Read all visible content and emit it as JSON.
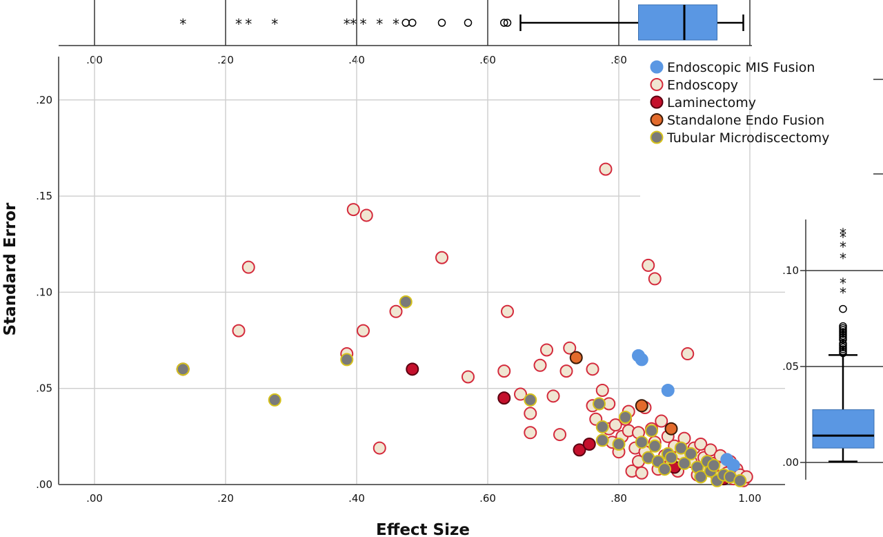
{
  "chart_data": {
    "type": "scatter",
    "title": "",
    "xlabel": "Effect Size",
    "ylabel": "Standard Error",
    "xlim": [
      -0.05,
      1.06
    ],
    "ylim": [
      0,
      0.22
    ],
    "x_ticks": [
      ".00",
      ".20",
      ".40",
      ".60",
      ".80",
      "1.00"
    ],
    "y_ticks": [
      ".00",
      ".05",
      ".10",
      ".15",
      ".20"
    ],
    "top_x_ticks": [
      ".00",
      ".20",
      ".40",
      ".60",
      ".80"
    ],
    "grid": true,
    "legend_position": "top-right",
    "series": [
      {
        "name": "Endoscopic MIS Fusion",
        "fill": "#5a97e3",
        "stroke": "#5a97e3",
        "points": [
          [
            0.83,
            0.067
          ],
          [
            0.835,
            0.065
          ],
          [
            0.875,
            0.049
          ],
          [
            0.965,
            0.013
          ],
          [
            0.975,
            0.01
          ]
        ]
      },
      {
        "name": "Endoscopy",
        "fill": "#f0e6d2",
        "stroke": "#d42a3c",
        "points": [
          [
            0.135,
            0.06
          ],
          [
            0.22,
            0.08
          ],
          [
            0.235,
            0.113
          ],
          [
            0.385,
            0.068
          ],
          [
            0.395,
            0.143
          ],
          [
            0.41,
            0.08
          ],
          [
            0.415,
            0.14
          ],
          [
            0.435,
            0.019
          ],
          [
            0.46,
            0.09
          ],
          [
            0.53,
            0.118
          ],
          [
            0.57,
            0.056
          ],
          [
            0.625,
            0.059
          ],
          [
            0.63,
            0.09
          ],
          [
            0.65,
            0.047
          ],
          [
            0.665,
            0.037
          ],
          [
            0.665,
            0.027
          ],
          [
            0.68,
            0.062
          ],
          [
            0.69,
            0.07
          ],
          [
            0.7,
            0.046
          ],
          [
            0.71,
            0.026
          ],
          [
            0.72,
            0.059
          ],
          [
            0.725,
            0.071
          ],
          [
            0.76,
            0.06
          ],
          [
            0.76,
            0.041
          ],
          [
            0.765,
            0.034
          ],
          [
            0.775,
            0.049
          ],
          [
            0.78,
            0.164
          ],
          [
            0.785,
            0.029
          ],
          [
            0.785,
            0.042
          ],
          [
            0.79,
            0.022
          ],
          [
            0.795,
            0.031
          ],
          [
            0.8,
            0.017
          ],
          [
            0.805,
            0.025
          ],
          [
            0.81,
            0.034
          ],
          [
            0.815,
            0.028
          ],
          [
            0.815,
            0.038
          ],
          [
            0.82,
            0.007
          ],
          [
            0.825,
            0.019
          ],
          [
            0.83,
            0.012
          ],
          [
            0.83,
            0.027
          ],
          [
            0.835,
            0.006
          ],
          [
            0.84,
            0.017
          ],
          [
            0.84,
            0.04
          ],
          [
            0.845,
            0.114
          ],
          [
            0.85,
            0.029
          ],
          [
            0.855,
            0.107
          ],
          [
            0.855,
            0.022
          ],
          [
            0.86,
            0.008
          ],
          [
            0.865,
            0.033
          ],
          [
            0.87,
            0.015
          ],
          [
            0.875,
            0.025
          ],
          [
            0.88,
            0.011
          ],
          [
            0.885,
            0.02
          ],
          [
            0.89,
            0.007
          ],
          [
            0.895,
            0.016
          ],
          [
            0.9,
            0.024
          ],
          [
            0.905,
            0.068
          ],
          [
            0.91,
            0.012
          ],
          [
            0.915,
            0.019
          ],
          [
            0.92,
            0.005
          ],
          [
            0.925,
            0.021
          ],
          [
            0.93,
            0.014
          ],
          [
            0.935,
            0.008
          ],
          [
            0.94,
            0.018
          ],
          [
            0.945,
            0.011
          ],
          [
            0.95,
            0.004
          ],
          [
            0.955,
            0.015
          ],
          [
            0.96,
            0.009
          ],
          [
            0.965,
            0.006
          ],
          [
            0.97,
            0.012
          ],
          [
            0.975,
            0.003
          ],
          [
            0.98,
            0.008
          ],
          [
            0.985,
            0.005
          ],
          [
            0.99,
            0.002
          ],
          [
            0.995,
            0.004
          ]
        ]
      },
      {
        "name": "Laminectomy",
        "fill": "#c4102c",
        "stroke": "#5a0010",
        "points": [
          [
            0.485,
            0.06
          ],
          [
            0.625,
            0.045
          ],
          [
            0.74,
            0.018
          ],
          [
            0.755,
            0.021
          ],
          [
            0.885,
            0.009
          ],
          [
            0.96,
            0.003
          ]
        ]
      },
      {
        "name": "Standalone Endo Fusion",
        "fill": "#e36b2c",
        "stroke": "#3a1a08",
        "points": [
          [
            0.135,
            0.06
          ],
          [
            0.735,
            0.066
          ],
          [
            0.835,
            0.041
          ],
          [
            0.88,
            0.029
          ]
        ]
      },
      {
        "name": "Tubular Microdiscectomy",
        "fill": "#7a7a7a",
        "stroke": "#d6c21c",
        "points": [
          [
            0.135,
            0.06
          ],
          [
            0.275,
            0.044
          ],
          [
            0.385,
            0.065
          ],
          [
            0.475,
            0.095
          ],
          [
            0.665,
            0.044
          ],
          [
            0.77,
            0.042
          ],
          [
            0.775,
            0.03
          ],
          [
            0.775,
            0.023
          ],
          [
            0.8,
            0.021
          ],
          [
            0.81,
            0.035
          ],
          [
            0.835,
            0.022
          ],
          [
            0.845,
            0.014
          ],
          [
            0.85,
            0.028
          ],
          [
            0.855,
            0.02
          ],
          [
            0.86,
            0.012
          ],
          [
            0.87,
            0.008
          ],
          [
            0.875,
            0.016
          ],
          [
            0.88,
            0.014
          ],
          [
            0.895,
            0.019
          ],
          [
            0.9,
            0.011
          ],
          [
            0.91,
            0.016
          ],
          [
            0.92,
            0.009
          ],
          [
            0.925,
            0.004
          ],
          [
            0.935,
            0.012
          ],
          [
            0.94,
            0.007
          ],
          [
            0.945,
            0.01
          ],
          [
            0.95,
            0.002
          ],
          [
            0.96,
            0.005
          ],
          [
            0.97,
            0.004
          ],
          [
            0.985,
            0.002
          ]
        ]
      }
    ],
    "top_boxplot": {
      "orientation": "horizontal",
      "min": 0.65,
      "q1": 0.83,
      "median": 0.9,
      "q3": 0.95,
      "max": 0.99,
      "outliers_circle": [
        0.475,
        0.485,
        0.53,
        0.57,
        0.625,
        0.63
      ],
      "outliers_star": [
        0.135,
        0.22,
        0.235,
        0.275,
        0.385,
        0.395,
        0.41,
        0.435,
        0.46
      ],
      "fill": "#5a97e3"
    },
    "right_boxplot": {
      "orientation": "vertical",
      "y_ticks": [
        ".00",
        ".05",
        ".10"
      ],
      "min": 0.0005,
      "q1": 0.0075,
      "median": 0.014,
      "q3": 0.0275,
      "max": 0.056,
      "outliers_circle": [
        0.057,
        0.058,
        0.059,
        0.06,
        0.061,
        0.062,
        0.064,
        0.065,
        0.066,
        0.067,
        0.068,
        0.069,
        0.07,
        0.071,
        0.08
      ],
      "outliers_star": [
        0.089,
        0.094,
        0.107,
        0.113,
        0.118,
        0.12
      ],
      "fill": "#5a97e3"
    }
  }
}
